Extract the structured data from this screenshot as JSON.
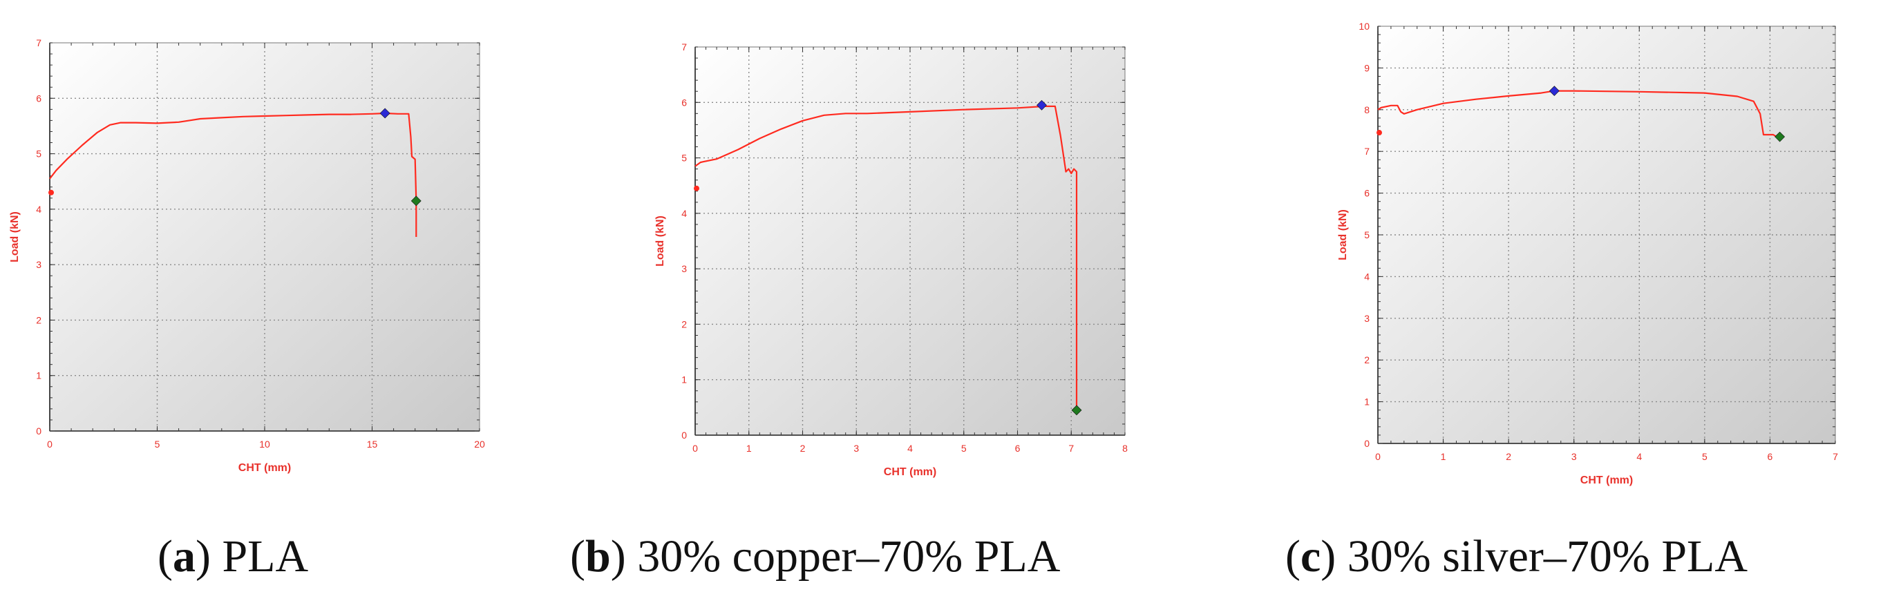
{
  "colors": {
    "curve": "#ff2a1f",
    "axis_text": "#e8302a",
    "max_marker": "#2a2ad6",
    "break_marker": "#1e7a1e",
    "plot_bg_light": "#ffffff",
    "plot_bg_dark": "#c9c9c9",
    "grid": "#8a8a8a"
  },
  "captions": [
    {
      "letter": "a",
      "text": " PLA"
    },
    {
      "letter": "b",
      "text": " 30% copper–70% PLA"
    },
    {
      "letter": "c",
      "text": " 30% silver–70% PLA"
    }
  ],
  "chart_data": [
    {
      "type": "line",
      "xlabel": "CHT (mm)",
      "ylabel": "Load (kN)",
      "xlim": [
        0,
        20
      ],
      "ylim": [
        0,
        7
      ],
      "xticks": [
        0,
        5,
        10,
        15,
        20
      ],
      "yticks": [
        0,
        1,
        2,
        3,
        4,
        5,
        6,
        7
      ],
      "grid": true,
      "series": [
        {
          "x": [
            0,
            0.3,
            0.8,
            1.5,
            2.2,
            2.8,
            3.3,
            4,
            5,
            6,
            6.5,
            7,
            8,
            9,
            10,
            11,
            12,
            13,
            14,
            15,
            15.6,
            16.2,
            16.7,
            16.8,
            16.85,
            17,
            17.05,
            17.05
          ],
          "y": [
            4.55,
            4.7,
            4.9,
            5.15,
            5.38,
            5.52,
            5.56,
            5.56,
            5.55,
            5.57,
            5.6,
            5.63,
            5.65,
            5.67,
            5.68,
            5.69,
            5.7,
            5.71,
            5.71,
            5.72,
            5.73,
            5.72,
            5.72,
            5.3,
            4.95,
            4.9,
            4.15,
            3.5
          ]
        }
      ],
      "start_marker": {
        "x": 0,
        "y": 4.3
      },
      "max_marker": {
        "x": 15.6,
        "y": 5.73
      },
      "break_marker": {
        "x": 17.05,
        "y": 4.15
      }
    },
    {
      "type": "line",
      "xlabel": "CHT (mm)",
      "ylabel": "Load (kN)",
      "xlim": [
        0,
        8
      ],
      "ylim": [
        0,
        7
      ],
      "xticks": [
        0,
        1,
        2,
        3,
        4,
        5,
        6,
        7,
        8
      ],
      "yticks": [
        0,
        1,
        2,
        3,
        4,
        5,
        6,
        7
      ],
      "grid": true,
      "series": [
        {
          "x": [
            0,
            0.1,
            0.4,
            0.8,
            1.2,
            1.6,
            2,
            2.4,
            2.8,
            3.2,
            4,
            5,
            6,
            6.5,
            6.7,
            6.8,
            6.9,
            6.95,
            7,
            7.05,
            7.1,
            7.1
          ],
          "y": [
            4.85,
            4.92,
            4.98,
            5.15,
            5.35,
            5.52,
            5.67,
            5.77,
            5.8,
            5.8,
            5.83,
            5.87,
            5.9,
            5.93,
            5.93,
            5.4,
            4.75,
            4.8,
            4.72,
            4.8,
            4.75,
            0.5
          ]
        }
      ],
      "start_marker": {
        "x": 0,
        "y": 4.45
      },
      "max_marker": {
        "x": 6.45,
        "y": 5.95
      },
      "break_marker": {
        "x": 7.1,
        "y": 0.45
      }
    },
    {
      "type": "line",
      "xlabel": "CHT (mm)",
      "ylabel": "Load (kN)",
      "xlim": [
        0,
        7
      ],
      "ylim": [
        0,
        10
      ],
      "xticks": [
        0,
        1,
        2,
        3,
        4,
        5,
        6,
        7
      ],
      "yticks": [
        0,
        1,
        2,
        3,
        4,
        5,
        6,
        7,
        8,
        9,
        10
      ],
      "grid": true,
      "series": [
        {
          "x": [
            0,
            0.05,
            0.2,
            0.3,
            0.35,
            0.4,
            0.6,
            1,
            1.5,
            2,
            2.5,
            2.7,
            3,
            4,
            5,
            5.5,
            5.75,
            5.85,
            5.9,
            5.95,
            6.05,
            6.1
          ],
          "y": [
            8.0,
            8.05,
            8.1,
            8.1,
            7.95,
            7.9,
            8.0,
            8.15,
            8.25,
            8.33,
            8.4,
            8.45,
            8.45,
            8.43,
            8.4,
            8.32,
            8.2,
            7.9,
            7.4,
            7.4,
            7.4,
            7.35
          ]
        }
      ],
      "start_marker": {
        "x": 0,
        "y": 7.45
      },
      "max_marker": {
        "x": 2.7,
        "y": 8.45
      },
      "break_marker": {
        "x": 6.15,
        "y": 7.35
      }
    }
  ]
}
